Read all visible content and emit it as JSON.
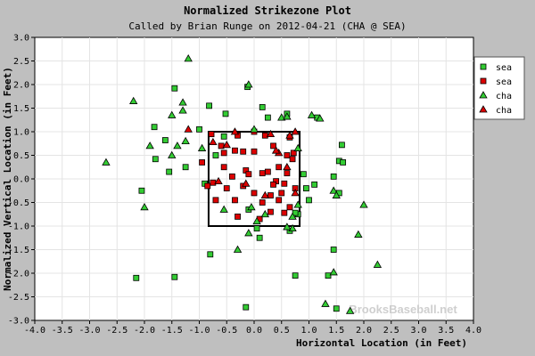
{
  "chart_data": {
    "type": "scatter",
    "title": "Normalized Strikezone Plot",
    "subtitle": "Called by Brian Runge on 2012-04-21 (CHA @ SEA)",
    "xlabel": "Horizontal Location (in Feet)",
    "ylabel": "Normalized Vertical Location (in Feet)",
    "xlim": [
      -4.0,
      4.0
    ],
    "ylim": [
      -3.0,
      3.0
    ],
    "xticks": [
      "-4.0",
      "-3.5",
      "-3.0",
      "-2.5",
      "-2.0",
      "-1.5",
      "-1.0",
      "-0.5",
      "0.0",
      "0.5",
      "1.0",
      "1.5",
      "2.0",
      "2.5",
      "3.0",
      "3.5",
      "4.0"
    ],
    "yticks": [
      "3.0",
      "2.5",
      "2.0",
      "1.5",
      "1.0",
      "0.5",
      "0.0",
      "-0.5",
      "-1.0",
      "-1.5",
      "-2.0",
      "-2.5",
      "-3.0"
    ],
    "strike_zone": {
      "x": [
        -0.83,
        0.83
      ],
      "y": [
        -1.0,
        1.0
      ]
    },
    "watermark": "BrooksBaseball.net",
    "legend_position": "top-right",
    "colors": {
      "green": "#33cc33",
      "red": "#dd0000",
      "plot_bg": "#ffffff",
      "frame_bg": "#bfbfbf"
    },
    "series": [
      {
        "name": "sea",
        "marker": "square",
        "color": "#33cc33",
        "points": [
          [
            -1.45,
            1.92
          ],
          [
            -0.52,
            1.38
          ],
          [
            -1.25,
            0.25
          ],
          [
            -0.82,
            1.55
          ],
          [
            0.25,
            1.3
          ],
          [
            0.15,
            1.52
          ],
          [
            0.6,
            1.38
          ],
          [
            1.15,
            1.3
          ],
          [
            1.55,
            0.38
          ],
          [
            1.45,
            0.05
          ],
          [
            1.1,
            -0.12
          ],
          [
            0.95,
            -0.2
          ],
          [
            0.9,
            0.1
          ],
          [
            1.6,
            0.72
          ],
          [
            1.62,
            0.35
          ],
          [
            1.0,
            -0.45
          ],
          [
            0.8,
            -0.75
          ],
          [
            0.65,
            -1.1
          ],
          [
            -0.7,
            0.5
          ],
          [
            -0.9,
            -0.1
          ],
          [
            -0.55,
            0.9
          ],
          [
            -1.55,
            0.15
          ],
          [
            -1.8,
            0.42
          ],
          [
            -1.0,
            1.05
          ],
          [
            -2.05,
            -0.25
          ],
          [
            -2.15,
            -2.1
          ],
          [
            -1.45,
            -2.08
          ],
          [
            -0.8,
            -1.6
          ],
          [
            -0.1,
            -0.65
          ],
          [
            0.05,
            -1.05
          ],
          [
            0.1,
            -1.25
          ],
          [
            0.75,
            -0.72
          ],
          [
            0.75,
            -2.05
          ],
          [
            1.35,
            -2.05
          ],
          [
            1.45,
            -1.5
          ],
          [
            1.55,
            -0.3
          ],
          [
            1.5,
            -2.75
          ],
          [
            -1.82,
            1.1
          ],
          [
            -1.62,
            0.82
          ],
          [
            -0.15,
            -2.72
          ],
          [
            -0.12,
            1.95
          ]
        ]
      },
      {
        "name": "sea",
        "marker": "square",
        "color": "#dd0000",
        "points": [
          [
            -0.78,
            0.95
          ],
          [
            -0.6,
            0.7
          ],
          [
            -0.55,
            0.55
          ],
          [
            -0.35,
            0.6
          ],
          [
            -0.3,
            0.92
          ],
          [
            -0.2,
            0.58
          ],
          [
            0.0,
            1.0
          ],
          [
            0.2,
            0.92
          ],
          [
            0.35,
            0.7
          ],
          [
            0.45,
            0.25
          ],
          [
            0.6,
            0.5
          ],
          [
            0.65,
            0.88
          ],
          [
            0.7,
            0.42
          ],
          [
            0.6,
            0.12
          ],
          [
            0.55,
            -0.1
          ],
          [
            0.4,
            -0.05
          ],
          [
            0.3,
            -0.35
          ],
          [
            0.15,
            -0.5
          ],
          [
            0.0,
            -0.3
          ],
          [
            -0.2,
            -0.15
          ],
          [
            -0.35,
            -0.45
          ],
          [
            -0.5,
            -0.2
          ],
          [
            -0.75,
            -0.08
          ],
          [
            -0.85,
            -0.15
          ],
          [
            -0.55,
            0.25
          ],
          [
            -0.15,
            0.18
          ],
          [
            0.25,
            0.15
          ],
          [
            0.5,
            -0.3
          ],
          [
            0.65,
            -0.6
          ],
          [
            0.75,
            -0.2
          ],
          [
            0.72,
            0.55
          ],
          [
            0.0,
            0.58
          ],
          [
            0.15,
            0.12
          ],
          [
            -0.4,
            0.05
          ],
          [
            -0.95,
            0.35
          ],
          [
            -0.7,
            -0.45
          ],
          [
            0.3,
            -0.7
          ],
          [
            0.55,
            -0.72
          ],
          [
            0.45,
            -0.45
          ],
          [
            -0.1,
            0.1
          ],
          [
            0.35,
            -0.12
          ],
          [
            0.1,
            -0.85
          ],
          [
            -0.3,
            -0.8
          ]
        ]
      },
      {
        "name": "cha",
        "marker": "triangle",
        "color": "#33cc33",
        "points": [
          [
            -1.2,
            2.55
          ],
          [
            -2.2,
            1.65
          ],
          [
            -1.3,
            1.45
          ],
          [
            -1.5,
            1.35
          ],
          [
            -1.3,
            1.62
          ],
          [
            -1.4,
            0.7
          ],
          [
            -1.5,
            0.5
          ],
          [
            -1.9,
            0.7
          ],
          [
            -2.7,
            0.35
          ],
          [
            -2.0,
            -0.6
          ],
          [
            -0.55,
            -0.65
          ],
          [
            0.5,
            1.3
          ],
          [
            0.6,
            1.32
          ],
          [
            1.2,
            1.28
          ],
          [
            0.8,
            0.65
          ],
          [
            1.45,
            -0.25
          ],
          [
            1.5,
            -0.35
          ],
          [
            1.9,
            -1.18
          ],
          [
            2.0,
            -0.55
          ],
          [
            2.25,
            -1.82
          ],
          [
            1.45,
            -1.98
          ],
          [
            1.3,
            -2.65
          ],
          [
            1.75,
            -2.8
          ],
          [
            0.7,
            -1.05
          ],
          [
            0.6,
            -1.02
          ],
          [
            0.2,
            -0.75
          ],
          [
            -0.05,
            -0.6
          ],
          [
            -0.1,
            -1.15
          ],
          [
            -0.3,
            -1.5
          ],
          [
            0.05,
            -0.9
          ],
          [
            -0.1,
            2.0
          ],
          [
            0.0,
            1.05
          ],
          [
            -1.25,
            0.8
          ],
          [
            -0.95,
            0.65
          ],
          [
            0.8,
            -0.55
          ],
          [
            1.05,
            1.35
          ],
          [
            0.7,
            -0.8
          ]
        ]
      },
      {
        "name": "cha",
        "marker": "triangle",
        "color": "#dd0000",
        "points": [
          [
            -1.2,
            1.05
          ],
          [
            -0.75,
            0.78
          ],
          [
            -0.5,
            0.72
          ],
          [
            0.3,
            0.95
          ],
          [
            0.65,
            0.92
          ],
          [
            0.75,
            1.0
          ],
          [
            0.6,
            0.25
          ],
          [
            0.45,
            0.55
          ],
          [
            -0.35,
            1.0
          ],
          [
            -0.15,
            -0.1
          ],
          [
            0.2,
            -0.35
          ],
          [
            -0.65,
            -0.05
          ],
          [
            0.75,
            -0.3
          ],
          [
            0.4,
            0.6
          ]
        ]
      }
    ]
  },
  "legend": [
    {
      "label": "sea",
      "marker": "square",
      "color": "#33cc33"
    },
    {
      "label": "sea",
      "marker": "square",
      "color": "#dd0000"
    },
    {
      "label": "cha",
      "marker": "triangle",
      "color": "#33cc33"
    },
    {
      "label": "cha",
      "marker": "triangle",
      "color": "#dd0000"
    }
  ]
}
